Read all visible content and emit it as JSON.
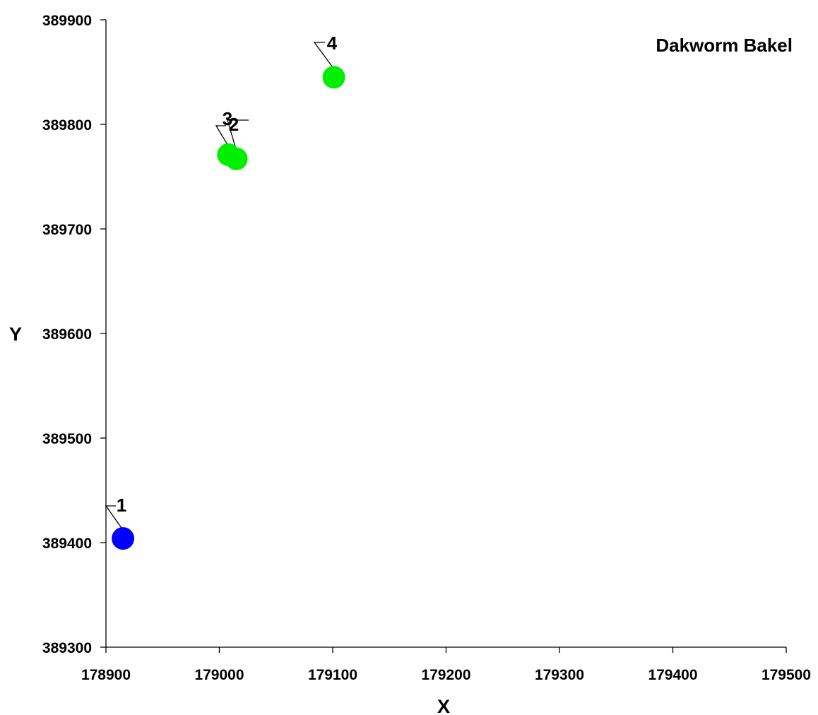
{
  "chart_data": {
    "type": "scatter",
    "title": "Dakworm Bakel",
    "xlabel": "X",
    "ylabel": "Y",
    "xlim": [
      178900,
      179500
    ],
    "ylim": [
      389300,
      389900
    ],
    "x_ticks": [
      "178900",
      "179000",
      "179100",
      "179200",
      "179300",
      "179400",
      "179500"
    ],
    "y_ticks": [
      "389300",
      "389400",
      "389500",
      "389600",
      "389700",
      "389800",
      "389900"
    ],
    "grid": false,
    "legend": "none",
    "points": [
      {
        "label": "1",
        "x": 178915,
        "y": 389404,
        "color": "#0000ff"
      },
      {
        "label": "2",
        "x": 179015,
        "y": 389767,
        "color": "#00ee00"
      },
      {
        "label": "3",
        "x": 179008,
        "y": 389771,
        "color": "#00ee00"
      },
      {
        "label": "4",
        "x": 179101,
        "y": 389845,
        "color": "#00ee00"
      }
    ]
  }
}
